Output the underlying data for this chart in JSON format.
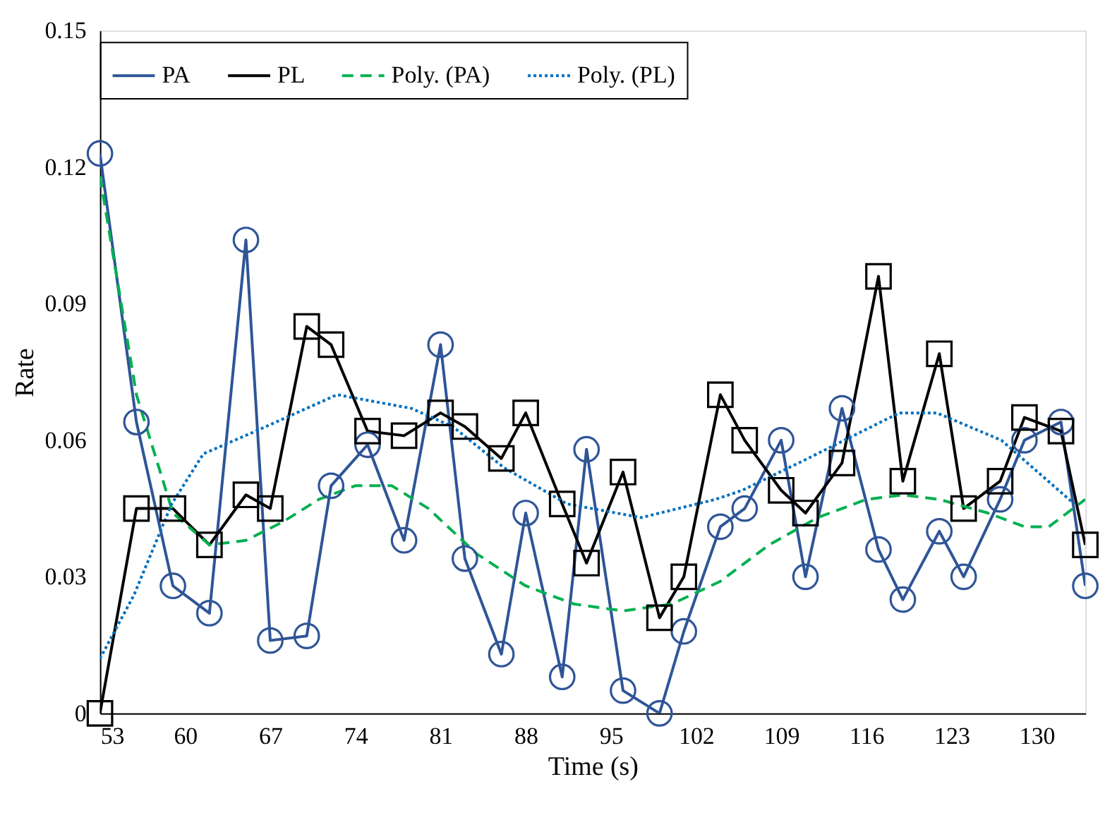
{
  "chart_data": {
    "type": "line",
    "xlabel": "Time (s)",
    "ylabel": "Rate",
    "xlim": [
      53,
      134
    ],
    "xticks": [
      53,
      60,
      67,
      74,
      81,
      88,
      95,
      102,
      109,
      116,
      123,
      130
    ],
    "ylim": [
      0,
      0.15
    ],
    "yticks": [
      0,
      0.03,
      0.06,
      0.09,
      0.12,
      0.15
    ],
    "grid": false,
    "legend": "top",
    "series": [
      {
        "name": "PA",
        "color": "#2f5597",
        "marker": "circle",
        "line_style": "solid",
        "x": [
          53,
          56,
          59,
          62,
          65,
          67,
          70,
          72,
          75,
          78,
          81,
          83,
          86,
          88,
          91,
          93,
          96,
          99,
          101,
          104,
          106,
          109,
          111,
          114,
          117,
          119,
          122,
          124,
          127,
          129,
          132,
          134
        ],
        "values": [
          0.123,
          0.064,
          0.028,
          0.022,
          0.104,
          0.016,
          0.017,
          0.05,
          0.059,
          0.038,
          0.081,
          0.034,
          0.013,
          0.044,
          0.008,
          0.058,
          0.005,
          0,
          0.018,
          0.041,
          0.045,
          0.06,
          0.03,
          0.067,
          0.036,
          0.025,
          0.04,
          0.03,
          0.047,
          0.06,
          0.064,
          0.028
        ]
      },
      {
        "name": "PL",
        "color": "#000000",
        "marker": "square",
        "line_style": "solid",
        "x": [
          53,
          56,
          59,
          62,
          65,
          67,
          70,
          72,
          75,
          78,
          81,
          83,
          86,
          88,
          91,
          93,
          96,
          99,
          101,
          104,
          106,
          109,
          111,
          114,
          117,
          119,
          122,
          124,
          127,
          129,
          132,
          134
        ],
        "values": [
          0,
          0.045,
          0.045,
          0.037,
          0.048,
          0.045,
          0.085,
          0.081,
          0.062,
          0.061,
          0.066,
          0.063,
          0.056,
          0.066,
          0.046,
          0.033,
          0.053,
          0.021,
          0.03,
          0.07,
          0.06,
          0.049,
          0.044,
          0.055,
          0.096,
          0.051,
          0.079,
          0.045,
          0.051,
          0.065,
          0.062,
          0.037
        ]
      },
      {
        "name": "Poly. (PA)",
        "color": "#00b050",
        "marker": "none",
        "line_style": "dashed",
        "x": [
          53,
          56,
          59,
          62,
          65,
          68,
          71,
          74,
          77,
          80,
          84,
          88,
          92,
          96,
          100,
          104,
          108,
          112,
          116,
          119,
          122,
          126,
          129,
          131,
          134
        ],
        "values": [
          0.118,
          0.07,
          0.044,
          0.037,
          0.038,
          0.042,
          0.047,
          0.05,
          0.05,
          0.045,
          0.035,
          0.028,
          0.024,
          0.0225,
          0.024,
          0.029,
          0.037,
          0.043,
          0.047,
          0.048,
          0.047,
          0.044,
          0.041,
          0.041,
          0.047
        ]
      },
      {
        "name": "Poly. (PL)",
        "color": "#0070c0",
        "marker": "none",
        "line_style": "dotted",
        "x": [
          53,
          55.8,
          58.9,
          61.5,
          65.8,
          72.5,
          78.6,
          82,
          86.2,
          91.4,
          97.5,
          103.6,
          105.8,
          111.2,
          118.7,
          121.8,
          127.1,
          133.1
        ],
        "values": [
          0.012,
          0.026,
          0.046,
          0.057,
          0.062,
          0.07,
          0.067,
          0.063,
          0.054,
          0.046,
          0.043,
          0.047,
          0.049,
          0.056,
          0.066,
          0.066,
          0.06,
          0.046
        ]
      }
    ]
  }
}
